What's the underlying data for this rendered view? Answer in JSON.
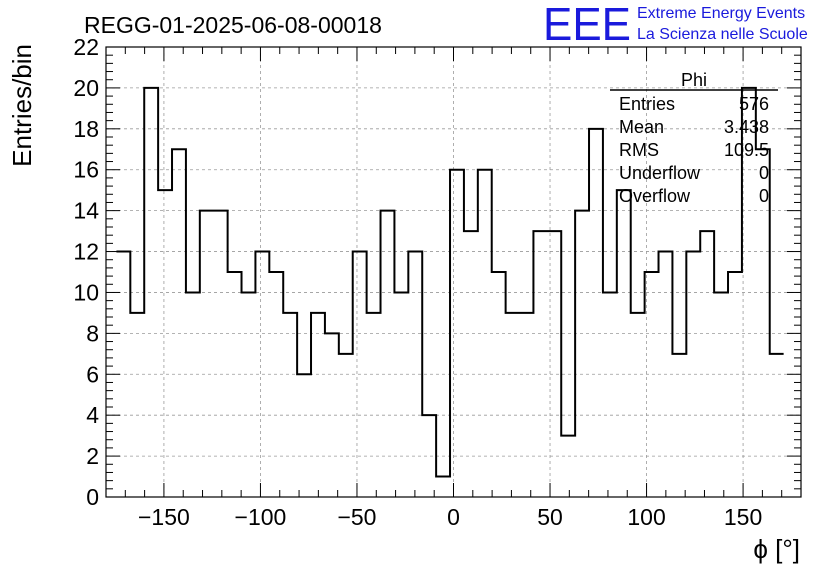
{
  "chart_data": {
    "type": "bar",
    "title": "REGG-01-2025-06-08-00018",
    "xlabel": "ϕ [°]",
    "ylabel": "Entries/bin",
    "xlim": [
      -180,
      180
    ],
    "ylim": [
      0,
      22
    ],
    "bin_width": 7.2,
    "bin_start": -174.6,
    "values": [
      12,
      9,
      20,
      15,
      17,
      10,
      14,
      14,
      11,
      10,
      12,
      11,
      9,
      6,
      9,
      8,
      7,
      12,
      9,
      14,
      10,
      12,
      4,
      1,
      16,
      13,
      16,
      11,
      9,
      9,
      13,
      13,
      3,
      14,
      18,
      10,
      15,
      9,
      11,
      12,
      7,
      12,
      13,
      10,
      11,
      20,
      17,
      7
    ],
    "x_ticks": [
      "−150",
      "−100",
      "−50",
      "0",
      "50",
      "100",
      "150"
    ],
    "x_tick_values": [
      -150,
      -100,
      -50,
      0,
      50,
      100,
      150
    ],
    "y_ticks": [
      "0",
      "2",
      "4",
      "6",
      "8",
      "10",
      "12",
      "14",
      "16",
      "18",
      "20",
      "22"
    ],
    "y_tick_values": [
      0,
      2,
      4,
      6,
      8,
      10,
      12,
      14,
      16,
      18,
      20,
      22
    ],
    "grid": true,
    "stats": {
      "name": "Phi",
      "rows": [
        {
          "label": "Entries",
          "value": "576"
        },
        {
          "label": "Mean",
          "value": "3.438"
        },
        {
          "label": "RMS",
          "value": "109.5"
        },
        {
          "label": "Underflow",
          "value": "0"
        },
        {
          "label": "Overflow",
          "value": "0"
        }
      ],
      "placement": "top-right"
    }
  },
  "logo": {
    "mark": "EEE",
    "line1": "Extreme Energy Events",
    "line2": "La Scienza nelle Scuole",
    "color": "#1a1adc"
  }
}
